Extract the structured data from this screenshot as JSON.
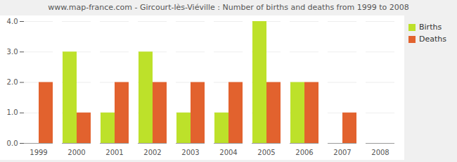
{
  "chart_data": {
    "type": "bar",
    "title": "www.map-france.com - Gircourt-lès-Viéville : Number of births and deaths from 1999 to 2008",
    "categories": [
      "1999",
      "2000",
      "2001",
      "2002",
      "2003",
      "2004",
      "2005",
      "2006",
      "2007",
      "2008"
    ],
    "series": [
      {
        "name": "Births",
        "color": "#bde12a",
        "values": [
          0,
          3,
          1,
          3,
          1,
          1,
          4,
          2,
          0,
          0
        ]
      },
      {
        "name": "Deaths",
        "color": "#e2622e",
        "values": [
          2,
          1,
          2,
          2,
          2,
          2,
          2,
          2,
          1,
          0
        ]
      }
    ],
    "ylim": [
      0,
      4
    ],
    "yticks": [
      0,
      1,
      2,
      3,
      4
    ],
    "grid": true,
    "legend": "top-right"
  }
}
